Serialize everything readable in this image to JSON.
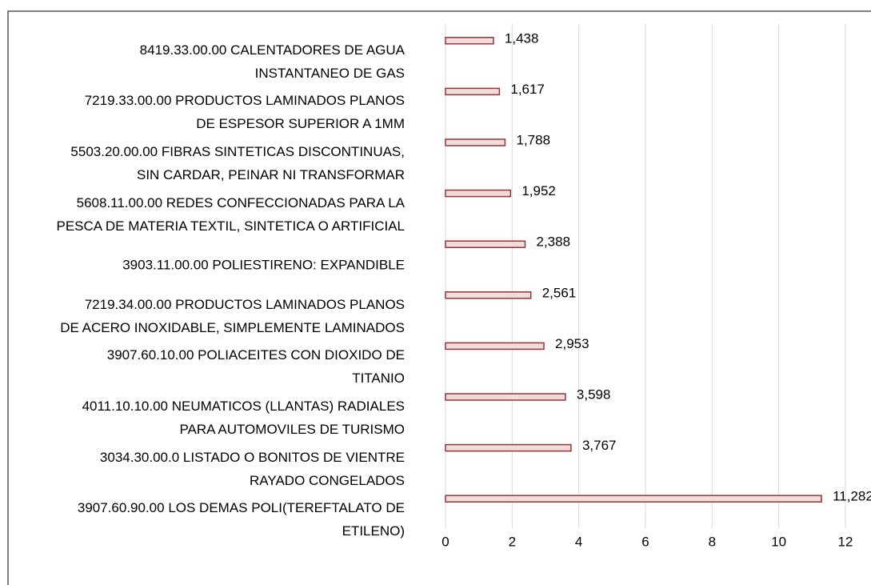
{
  "chart_data": {
    "type": "barh",
    "categories": [
      "8419.33.00.00 CALENTADORES DE AGUA\nINSTANTANEO DE GAS",
      "7219.33.00.00 PRODUCTOS LAMINADOS PLANOS\nDE ESPESOR SUPERIOR A 1MM",
      "5503.20.00.00 FIBRAS SINTETICAS DISCONTINUAS,\nSIN CARDAR, PEINAR NI TRANSFORMAR",
      "5608.11.00.00 REDES CONFECCIONADAS PARA LA\nPESCA DE MATERIA TEXTIL, SINTETICA O ARTIFICIAL",
      "3903.11.00.00 POLIESTIRENO: EXPANDIBLE",
      "7219.34.00.00 PRODUCTOS LAMINADOS PLANOS\nDE ACERO INOXIDABLE, SIMPLEMENTE LAMINADOS",
      "3907.60.10.00 POLIACEITES CON DIOXIDO DE\nTITANIO",
      "4011.10.10.00 NEUMATICOS (LLANTAS) RADIALES\nPARA AUTOMOVILES DE TURISMO",
      "3034.30.00.0 LISTADO O BONITOS DE VIENTRE\nRAYADO CONGELADOS",
      "3907.60.90.00 LOS DEMAS POLI(TEREFTALATO DE\nETILENO)"
    ],
    "values": [
      1.438,
      1.617,
      1.788,
      1.952,
      2.388,
      2.561,
      2.953,
      3.598,
      3.767,
      11.282
    ],
    "value_labels": [
      "1,438",
      "1,617",
      "1,788",
      "1,952",
      "2,388",
      "2,561",
      "2,953",
      "3,598",
      "3,767",
      "11,282"
    ],
    "color": "#f2dcdb",
    "edge_color": "#943634",
    "xlim": [
      0,
      12
    ],
    "xticks": [
      0,
      2,
      4,
      6,
      8,
      10,
      12
    ],
    "grid": true
  }
}
